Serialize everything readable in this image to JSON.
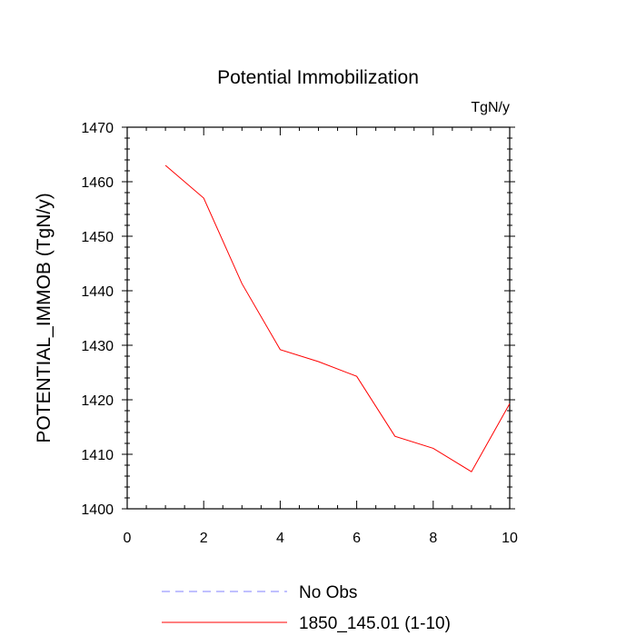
{
  "chart_data": {
    "type": "line",
    "title": "Potential Immobilization",
    "subtitle": "TgN/y",
    "xlabel": "",
    "ylabel": "POTENTIAL_IMMOB  (TgN/y)",
    "xlim": [
      0,
      10
    ],
    "ylim": [
      1400,
      1470
    ],
    "xticks": [
      0,
      2,
      4,
      6,
      8,
      10
    ],
    "yticks": [
      1400,
      1410,
      1420,
      1430,
      1440,
      1450,
      1460,
      1470
    ],
    "grid": false,
    "legend_position": "bottom",
    "series": [
      {
        "name": "No Obs",
        "color": "#8080ff",
        "dash": true,
        "x": [],
        "y": []
      },
      {
        "name": "1850_145.01 (1-10)",
        "color": "#ff0000",
        "dash": false,
        "x": [
          1,
          2,
          3,
          4,
          5,
          6,
          7,
          8,
          9,
          10
        ],
        "y": [
          1463.0,
          1457.0,
          1441.3,
          1429.2,
          1427.0,
          1424.3,
          1413.3,
          1411.1,
          1406.8,
          1419.3
        ]
      }
    ]
  }
}
